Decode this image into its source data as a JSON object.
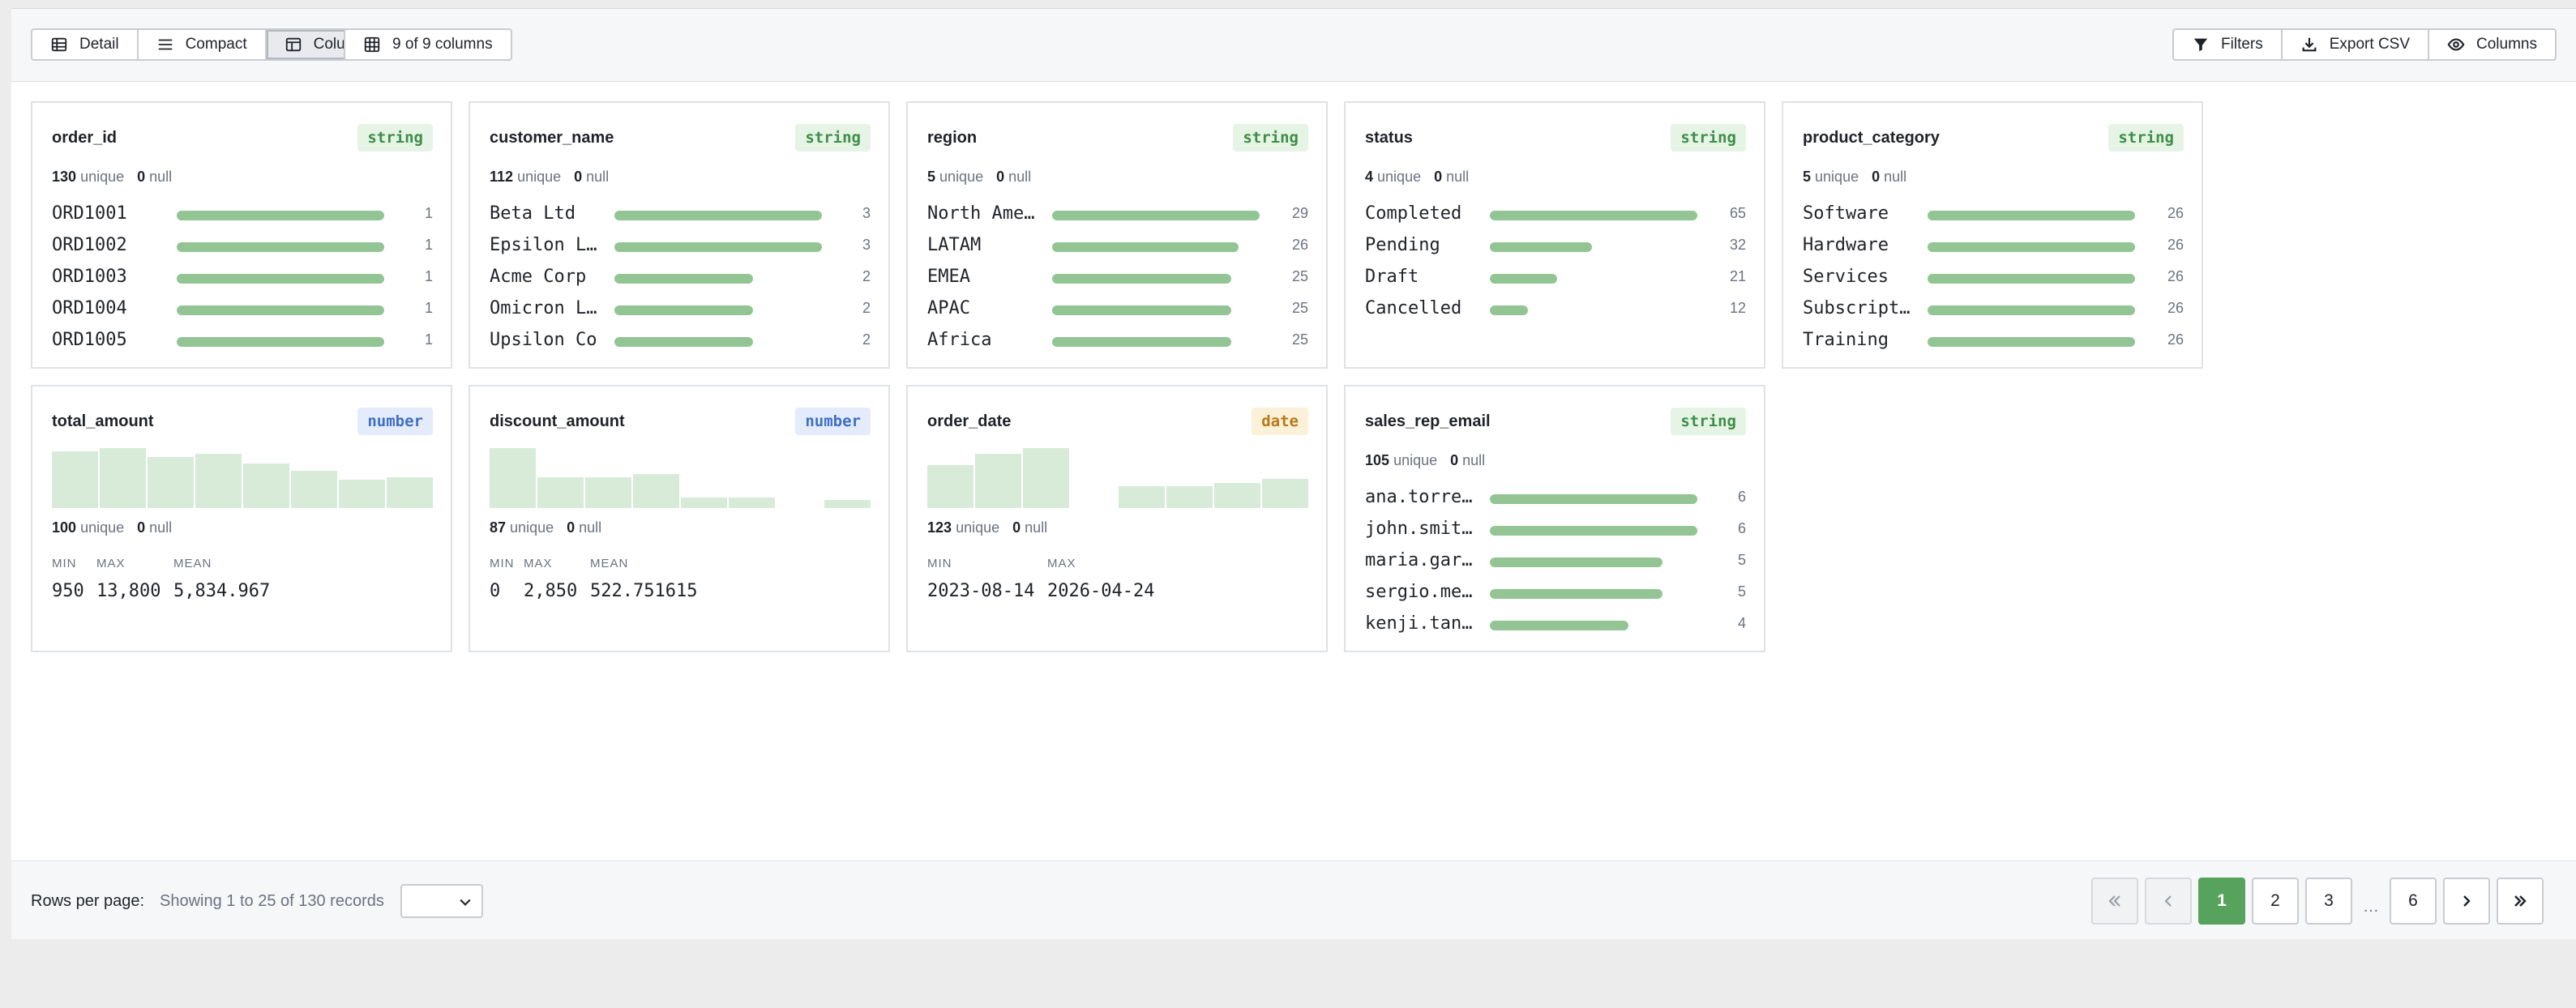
{
  "toolbar": {
    "view_modes": [
      {
        "label": "Detail",
        "icon": "table-icon",
        "active": false
      },
      {
        "label": "Compact",
        "icon": "list-icon",
        "active": false
      },
      {
        "label": "Column",
        "icon": "columns-layout-icon",
        "active": true
      }
    ],
    "columns_count_label": "9 of 9 columns",
    "actions": [
      {
        "label": "Filters",
        "icon": "filter-icon"
      },
      {
        "label": "Export CSV",
        "icon": "download-icon"
      },
      {
        "label": "Columns",
        "icon": "eye-icon"
      }
    ]
  },
  "cards": [
    {
      "name": "order_id",
      "type": "string",
      "unique": "130",
      "unique_label": "unique",
      "null": "0",
      "null_label": "null",
      "values": [
        {
          "label": "ORD1001",
          "count": 1,
          "fraction": 1.0
        },
        {
          "label": "ORD1002",
          "count": 1,
          "fraction": 1.0
        },
        {
          "label": "ORD1003",
          "count": 1,
          "fraction": 1.0
        },
        {
          "label": "ORD1004",
          "count": 1,
          "fraction": 1.0
        },
        {
          "label": "ORD1005",
          "count": 1,
          "fraction": 1.0
        }
      ]
    },
    {
      "name": "customer_name",
      "type": "string",
      "unique": "112",
      "unique_label": "unique",
      "null": "0",
      "null_label": "null",
      "values": [
        {
          "label": "Beta Ltd",
          "count": 3,
          "fraction": 1.0
        },
        {
          "label": "Epsilon L…",
          "count": 3,
          "fraction": 1.0
        },
        {
          "label": "Acme Corp",
          "count": 2,
          "fraction": 0.667
        },
        {
          "label": "Omicron L…",
          "count": 2,
          "fraction": 0.667
        },
        {
          "label": "Upsilon Co",
          "count": 2,
          "fraction": 0.667
        }
      ]
    },
    {
      "name": "region",
      "type": "string",
      "unique": "5",
      "unique_label": "unique",
      "null": "0",
      "null_label": "null",
      "values": [
        {
          "label": "North Ame…",
          "count": 29,
          "fraction": 1.0
        },
        {
          "label": "LATAM",
          "count": 26,
          "fraction": 0.897
        },
        {
          "label": "EMEA",
          "count": 25,
          "fraction": 0.862
        },
        {
          "label": "APAC",
          "count": 25,
          "fraction": 0.862
        },
        {
          "label": "Africa",
          "count": 25,
          "fraction": 0.862
        }
      ]
    },
    {
      "name": "status",
      "type": "string",
      "unique": "4",
      "unique_label": "unique",
      "null": "0",
      "null_label": "null",
      "values": [
        {
          "label": "Completed",
          "count": 65,
          "fraction": 1.0
        },
        {
          "label": "Pending",
          "count": 32,
          "fraction": 0.492
        },
        {
          "label": "Draft",
          "count": 21,
          "fraction": 0.323
        },
        {
          "label": "Cancelled",
          "count": 12,
          "fraction": 0.185
        }
      ]
    },
    {
      "name": "product_category",
      "type": "string",
      "unique": "5",
      "unique_label": "unique",
      "null": "0",
      "null_label": "null",
      "values": [
        {
          "label": "Software",
          "count": 26,
          "fraction": 1.0
        },
        {
          "label": "Hardware",
          "count": 26,
          "fraction": 1.0
        },
        {
          "label": "Services",
          "count": 26,
          "fraction": 1.0
        },
        {
          "label": "Subscript…",
          "count": 26,
          "fraction": 1.0
        },
        {
          "label": "Training",
          "count": 26,
          "fraction": 1.0
        }
      ]
    },
    {
      "name": "total_amount",
      "type": "number",
      "unique": "100",
      "unique_label": "unique",
      "null": "0",
      "null_label": "null",
      "histogram": [
        0.95,
        1.0,
        0.85,
        0.9,
        0.75,
        0.62,
        0.47,
        0.52
      ],
      "summary": [
        {
          "label": "MIN",
          "value": "950"
        },
        {
          "label": "MAX",
          "value": "13,800"
        },
        {
          "label": "MEAN",
          "value": "5,834.967"
        }
      ]
    },
    {
      "name": "discount_amount",
      "type": "number",
      "unique": "87",
      "unique_label": "unique",
      "null": "0",
      "null_label": "null",
      "histogram": [
        1.0,
        0.52,
        0.52,
        0.57,
        0.18,
        0.18,
        0.0,
        0.14
      ],
      "summary": [
        {
          "label": "MIN",
          "value": "0"
        },
        {
          "label": "MAX",
          "value": "2,850"
        },
        {
          "label": "MEAN",
          "value": "522.751615"
        }
      ]
    },
    {
      "name": "order_date",
      "type": "date",
      "unique": "123",
      "unique_label": "unique",
      "null": "0",
      "null_label": "null",
      "histogram": [
        0.72,
        0.9,
        1.0,
        0.0,
        0.36,
        0.36,
        0.42,
        0.48
      ],
      "summary": [
        {
          "label": "MIN",
          "value": "2023-08-14"
        },
        {
          "label": "MAX",
          "value": "2026-04-24"
        }
      ]
    },
    {
      "name": "sales_rep_email",
      "type": "string",
      "unique": "105",
      "unique_label": "unique",
      "null": "0",
      "null_label": "null",
      "values": [
        {
          "label": "ana.torre…",
          "count": 6,
          "fraction": 1.0
        },
        {
          "label": "john.smit…",
          "count": 6,
          "fraction": 1.0
        },
        {
          "label": "maria.gar…",
          "count": 5,
          "fraction": 0.833
        },
        {
          "label": "sergio.me…",
          "count": 5,
          "fraction": 0.833
        },
        {
          "label": "kenji.tan…",
          "count": 4,
          "fraction": 0.667
        }
      ]
    }
  ],
  "footer": {
    "rows_per_page_label": "Rows per page:",
    "showing_text": "Showing 1 to 25 of 130 records",
    "rows_per_page_value": "",
    "pages": [
      "1",
      "2",
      "3",
      "6"
    ],
    "current_page": "1",
    "ellipsis": "…"
  }
}
